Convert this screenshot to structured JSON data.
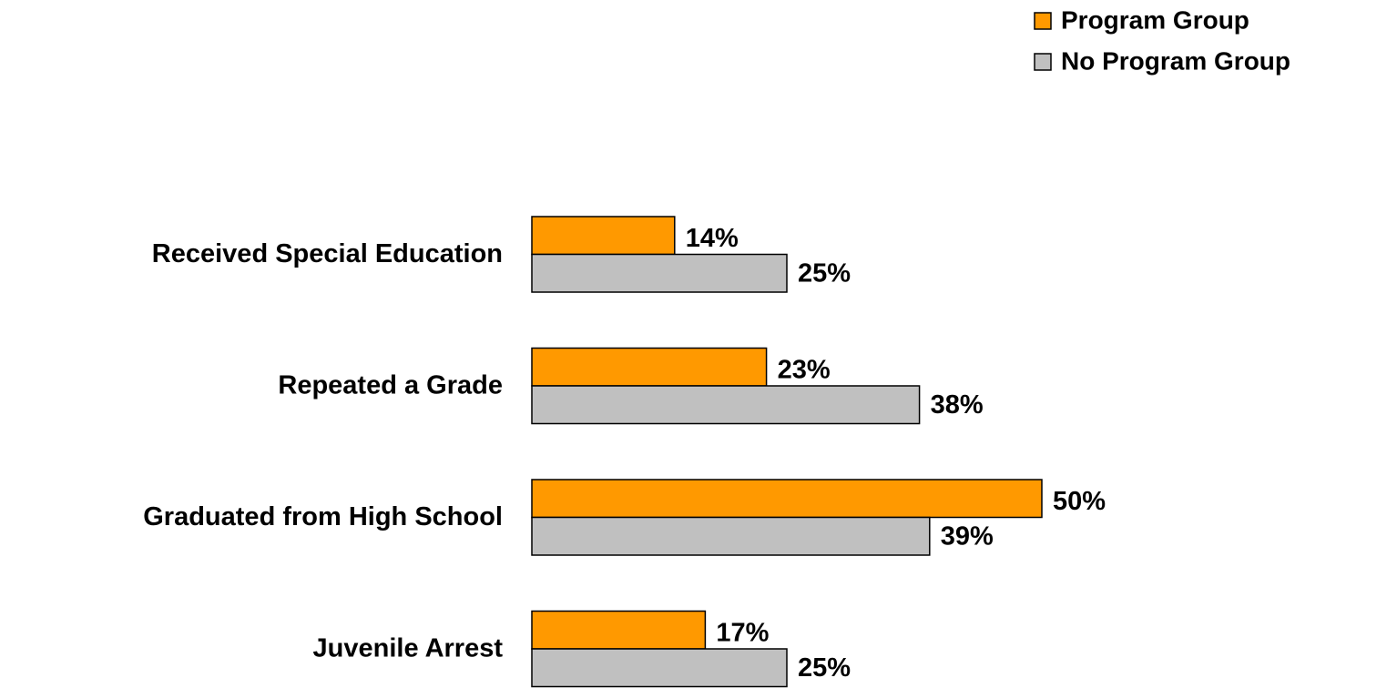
{
  "chart_data": {
    "type": "bar",
    "orientation": "horizontal",
    "categories": [
      "Received Special Education",
      "Repeated a Grade",
      "Graduated from High School",
      "Juvenile Arrest"
    ],
    "series": [
      {
        "name": "Program Group",
        "color": "#ff9900",
        "values": [
          14,
          23,
          50,
          17
        ],
        "value_labels": [
          "14%",
          "23%",
          "50%",
          "17%"
        ]
      },
      {
        "name": "No Program Group",
        "color": "#c0c0c0",
        "values": [
          25,
          38,
          39,
          25
        ],
        "value_labels": [
          "25%",
          "38%",
          "39%",
          "25%"
        ]
      }
    ],
    "legend": "top-right"
  }
}
